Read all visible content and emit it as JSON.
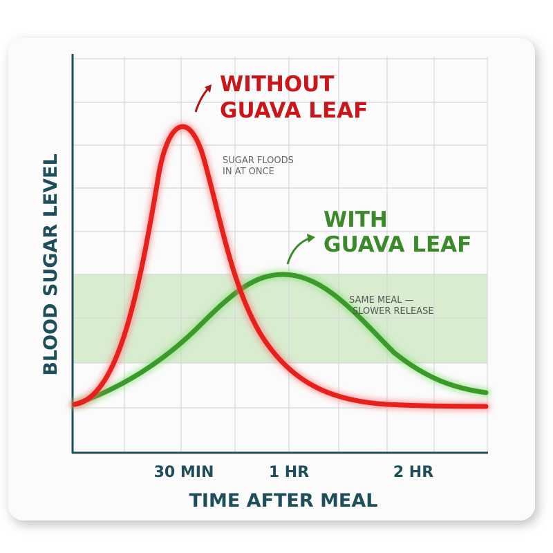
{
  "axes": {
    "y_label": "BLOOD SUGAR LEVEL",
    "x_label": "TIME AFTER MEAL",
    "x_ticks": [
      "30 MIN",
      "1 HR",
      "2 HR"
    ]
  },
  "curves": {
    "without": {
      "label": [
        "WITHOUT",
        "GUAVA LEAF"
      ],
      "note": [
        "SUGAR FLOODS",
        "IN AT ONCE"
      ]
    },
    "with": {
      "label": [
        "WITH",
        "GUAVA LEAF"
      ],
      "note": [
        "SAME MEAL —",
        "SLOWER RELEASE"
      ]
    }
  }
}
